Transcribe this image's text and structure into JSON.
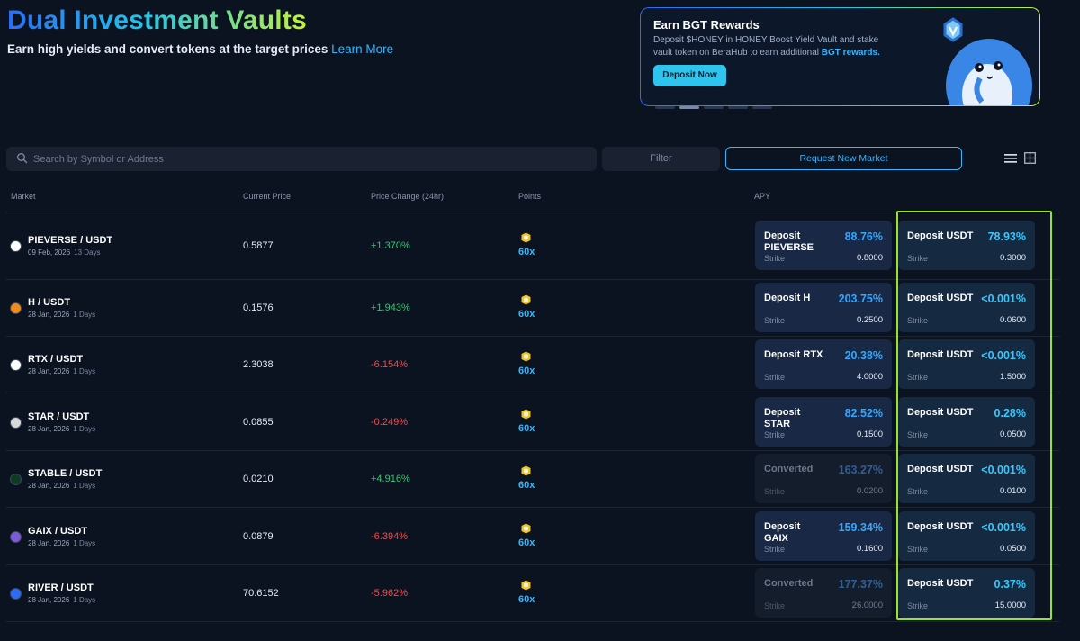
{
  "header": {
    "title": "Dual Investment Vaults",
    "subtitle": "Earn high yields and convert tokens at the target prices",
    "learn_more": "Learn More"
  },
  "promo": {
    "title": "Earn BGT Rewards",
    "desc": "Deposit $HONEY in HONEY Boost Yield Vault and stake vault token on BeraHub to earn additional",
    "desc_highlight": "BGT rewards.",
    "button": "Deposit Now"
  },
  "toolbar": {
    "search_placeholder": "Search by Symbol or Address",
    "filter": "Filter",
    "request": "Request New Market"
  },
  "columns": {
    "market": "Market",
    "current_price": "Current Price",
    "price_change": "Price Change (24hr)",
    "points": "Points",
    "apy": "APY"
  },
  "rows": [
    {
      "name": "PIEVERSE / USDT",
      "date": "09 Feb, 2026",
      "days": "13 Days",
      "price": "0.5877",
      "change": "+1.370%",
      "dir": "up",
      "points": "60x",
      "icon_color": "#ffffff",
      "left": {
        "label": "Deposit PIEVERSE",
        "apy": "88.76%",
        "strike_label": "Strike",
        "strike": "0.8000"
      },
      "right": {
        "label": "Deposit USDT",
        "apy": "78.93%",
        "strike_label": "Strike",
        "strike": "0.3000"
      }
    },
    {
      "name": "H / USDT",
      "date": "28 Jan, 2026",
      "days": "1 Days",
      "price": "0.1576",
      "change": "+1.943%",
      "dir": "up",
      "points": "60x",
      "icon_color": "#f08a1c",
      "left": {
        "label": "Deposit H",
        "apy": "203.75%",
        "strike_label": "Strike",
        "strike": "0.2500"
      },
      "right": {
        "label": "Deposit USDT",
        "apy": "<0.001%",
        "strike_label": "Strike",
        "strike": "0.0600"
      }
    },
    {
      "name": "RTX / USDT",
      "date": "28 Jan, 2026",
      "days": "1 Days",
      "price": "2.3038",
      "change": "-6.154%",
      "dir": "down",
      "points": "60x",
      "icon_color": "#ffffff",
      "left": {
        "label": "Deposit RTX",
        "apy": "20.38%",
        "strike_label": "Strike",
        "strike": "4.0000"
      },
      "right": {
        "label": "Deposit USDT",
        "apy": "<0.001%",
        "strike_label": "Strike",
        "strike": "1.5000"
      }
    },
    {
      "name": "STAR / USDT",
      "date": "28 Jan, 2026",
      "days": "1 Days",
      "price": "0.0855",
      "change": "-0.249%",
      "dir": "down",
      "points": "60x",
      "icon_color": "#d8d8d8",
      "left": {
        "label": "Deposit STAR",
        "apy": "82.52%",
        "strike_label": "Strike",
        "strike": "0.1500"
      },
      "right": {
        "label": "Deposit USDT",
        "apy": "0.28%",
        "strike_label": "Strike",
        "strike": "0.0500"
      }
    },
    {
      "name": "STABLE / USDT",
      "date": "28 Jan, 2026",
      "days": "1 Days",
      "price": "0.0210",
      "change": "+4.916%",
      "dir": "up",
      "points": "60x",
      "icon_color": "#0f3a24",
      "left": {
        "label": "Converted",
        "apy": "163.27%",
        "strike_label": "Strike",
        "strike": "0.0200",
        "dim": true
      },
      "right": {
        "label": "Deposit USDT",
        "apy": "<0.001%",
        "strike_label": "Strike",
        "strike": "0.0100"
      }
    },
    {
      "name": "GAIX / USDT",
      "date": "28 Jan, 2026",
      "days": "1 Days",
      "price": "0.0879",
      "change": "-6.394%",
      "dir": "down",
      "points": "60x",
      "icon_color": "#7b5cd6",
      "left": {
        "label": "Deposit GAIX",
        "apy": "159.34%",
        "strike_label": "Strike",
        "strike": "0.1600"
      },
      "right": {
        "label": "Deposit USDT",
        "apy": "<0.001%",
        "strike_label": "Strike",
        "strike": "0.0500"
      }
    },
    {
      "name": "RIVER / USDT",
      "date": "28 Jan, 2026",
      "days": "1 Days",
      "price": "70.6152",
      "change": "-5.962%",
      "dir": "down",
      "points": "60x",
      "icon_color": "#2f6bf0",
      "left": {
        "label": "Converted",
        "apy": "177.37%",
        "strike_label": "Strike",
        "strike": "26.0000",
        "dim": true
      },
      "right": {
        "label": "Deposit USDT",
        "apy": "0.37%",
        "strike_label": "Strike",
        "strike": "15.0000"
      }
    }
  ]
}
